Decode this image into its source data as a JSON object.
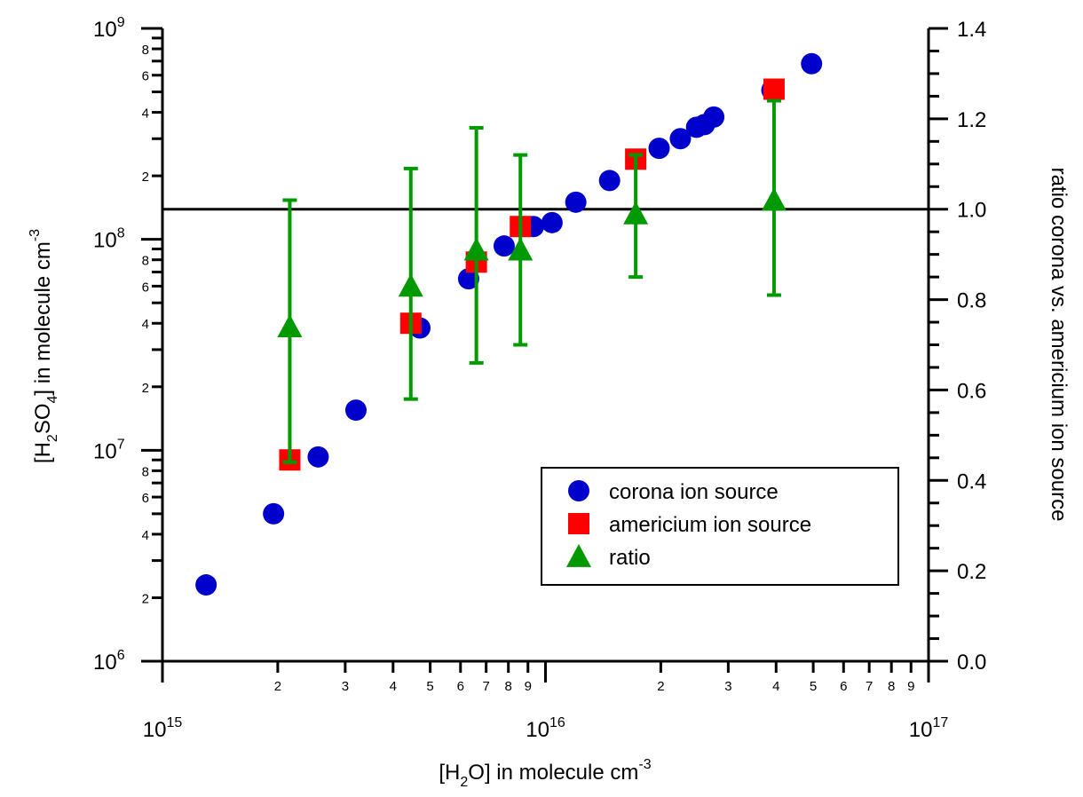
{
  "chart_data": {
    "type": "scatter",
    "x_axis": {
      "label": "[H2O] in molecule cm-3",
      "label_parts": {
        "base": "[H",
        "sub": "2",
        "mid": "O] in molecule cm",
        "sup": "-3"
      },
      "scale": "log",
      "range": [
        1000000000000000.0,
        1e+17
      ],
      "decade_labels": [
        {
          "value": 1000000000000000.0,
          "base": "10",
          "exp": "15"
        },
        {
          "value": 1e+16,
          "base": "10",
          "exp": "16"
        },
        {
          "value": 1e+17,
          "base": "10",
          "exp": "17"
        }
      ],
      "minor_labels": [
        "2",
        "3",
        "4",
        "5",
        "6",
        "7",
        "8",
        "9"
      ]
    },
    "y_axis_left": {
      "label": "[H2SO4] in molecule cm-3",
      "label_parts": {
        "a": "[H",
        "sub1": "2",
        "b": "SO",
        "sub2": "4",
        "c": "] in molecule cm",
        "sup": "-3"
      },
      "scale": "log",
      "range": [
        1000000.0,
        1000000000.0
      ],
      "decade_labels": [
        {
          "value": 1000000.0,
          "base": "10",
          "exp": "6"
        },
        {
          "value": 10000000.0,
          "base": "10",
          "exp": "7"
        },
        {
          "value": 100000000.0,
          "base": "10",
          "exp": "8"
        },
        {
          "value": 1000000000.0,
          "base": "10",
          "exp": "9"
        }
      ],
      "minor_labels": [
        "2",
        "4",
        "6",
        "8"
      ]
    },
    "y_axis_right": {
      "label": "ratio corona vs. americium ion source",
      "scale": "linear",
      "range": [
        0.0,
        1.4
      ],
      "ticks": [
        "0.0",
        "0.2",
        "0.4",
        "0.6",
        "0.8",
        "1.0",
        "1.2",
        "1.4"
      ]
    },
    "reference_line": {
      "axis": "right",
      "value": 1.0
    },
    "legend": {
      "position": "lower-right",
      "entries": [
        "corona ion source",
        "americium ion source",
        "ratio"
      ]
    },
    "series": [
      {
        "name": "corona ion source",
        "marker": "circle",
        "color": "#0000cc",
        "axis": "left",
        "points": [
          [
            1300000000000000.0,
            2300000.0
          ],
          [
            1950000000000000.0,
            5000000.0
          ],
          [
            2550000000000000.0,
            9300000.0
          ],
          [
            3200000000000000.0,
            15500000.0
          ],
          [
            4700000000000000.0,
            38000000.0
          ],
          [
            6300000000000000.0,
            65000000.0
          ],
          [
            7800000000000000.0,
            93000000.0
          ],
          [
            9300000000000000.0,
            115000000.0
          ],
          [
            1.04e+16,
            120000000.0
          ],
          [
            1.2e+16,
            150000000.0
          ],
          [
            1.47e+16,
            190000000.0
          ],
          [
            1.98e+16,
            270000000.0
          ],
          [
            2.25e+16,
            300000000.0
          ],
          [
            2.48e+16,
            340000000.0
          ],
          [
            2.6e+16,
            350000000.0
          ],
          [
            2.75e+16,
            380000000.0
          ],
          [
            3.9e+16,
            510000000.0
          ],
          [
            4.95e+16,
            680000000.0
          ]
        ]
      },
      {
        "name": "americium ion source",
        "marker": "square",
        "color": "#ff0000",
        "axis": "left",
        "points": [
          [
            2150000000000000.0,
            9000000.0
          ],
          [
            4450000000000000.0,
            40000000.0
          ],
          [
            6600000000000000.0,
            78000000.0
          ],
          [
            8600000000000000.0,
            115000000.0
          ],
          [
            1.72e+16,
            240000000.0
          ],
          [
            3.95e+16,
            515000000.0
          ]
        ]
      },
      {
        "name": "ratio",
        "marker": "triangle",
        "color": "#009900",
        "axis": "right",
        "points": [
          {
            "x": 2150000000000000.0,
            "y": 0.74,
            "lo": 0.44,
            "hi": 1.02
          },
          {
            "x": 4450000000000000.0,
            "y": 0.83,
            "lo": 0.58,
            "hi": 1.09
          },
          {
            "x": 6600000000000000.0,
            "y": 0.91,
            "lo": 0.66,
            "hi": 1.18
          },
          {
            "x": 8600000000000000.0,
            "y": 0.91,
            "lo": 0.7,
            "hi": 1.12
          },
          {
            "x": 1.72e+16,
            "y": 0.99,
            "lo": 0.85,
            "hi": 1.12
          },
          {
            "x": 3.95e+16,
            "y": 1.02,
            "lo": 0.81,
            "hi": 1.24
          }
        ]
      }
    ]
  }
}
